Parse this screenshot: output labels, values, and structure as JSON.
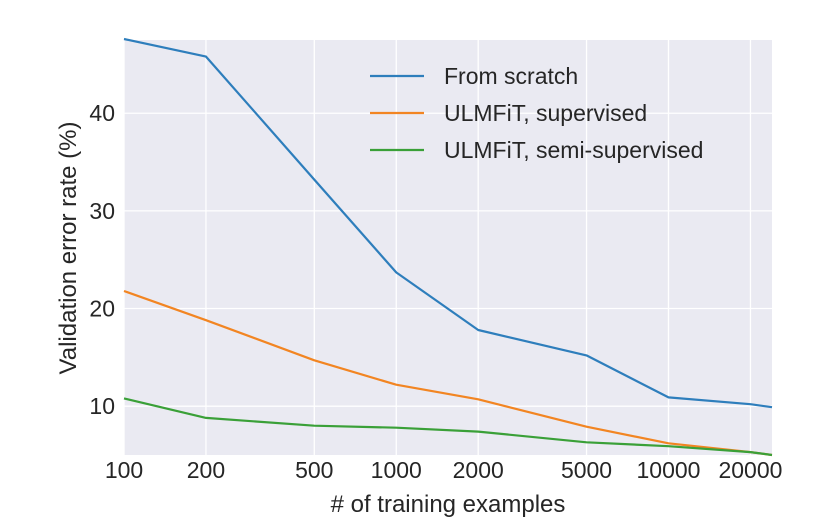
{
  "chart_data": {
    "type": "line",
    "xscale": "log",
    "xlabel": "# of training examples",
    "ylabel": "Validation error rate (%)",
    "xlim": [
      100,
      24000
    ],
    "ylim": [
      5,
      47.5
    ],
    "x_ticks": [
      100,
      200,
      500,
      1000,
      2000,
      5000,
      10000,
      20000
    ],
    "x_tick_labels": [
      "100",
      "200",
      "500",
      "1000",
      "2000",
      "5000",
      "10000",
      "20000"
    ],
    "y_ticks": [
      10,
      20,
      30,
      40
    ],
    "y_tick_labels": [
      "10",
      "20",
      "30",
      "40"
    ],
    "x": [
      100,
      200,
      500,
      1000,
      2000,
      5000,
      10000,
      20000,
      24000
    ],
    "grid": true,
    "background": "#eaeaf2",
    "legend_position": "top-right",
    "series": [
      {
        "name": "From scratch",
        "color": "#2e7ebc",
        "values": [
          47.6,
          45.8,
          33.2,
          23.7,
          17.8,
          15.2,
          10.9,
          10.2,
          9.9
        ]
      },
      {
        "name": "ULMFiT, supervised",
        "color": "#f28522",
        "values": [
          21.8,
          18.8,
          14.7,
          12.2,
          10.7,
          7.9,
          6.2,
          5.3,
          5.0
        ]
      },
      {
        "name": "ULMFiT, semi-supervised",
        "color": "#3aa038",
        "values": [
          10.8,
          8.8,
          8.0,
          7.8,
          7.4,
          6.3,
          5.9,
          5.3,
          5.0
        ]
      }
    ]
  }
}
